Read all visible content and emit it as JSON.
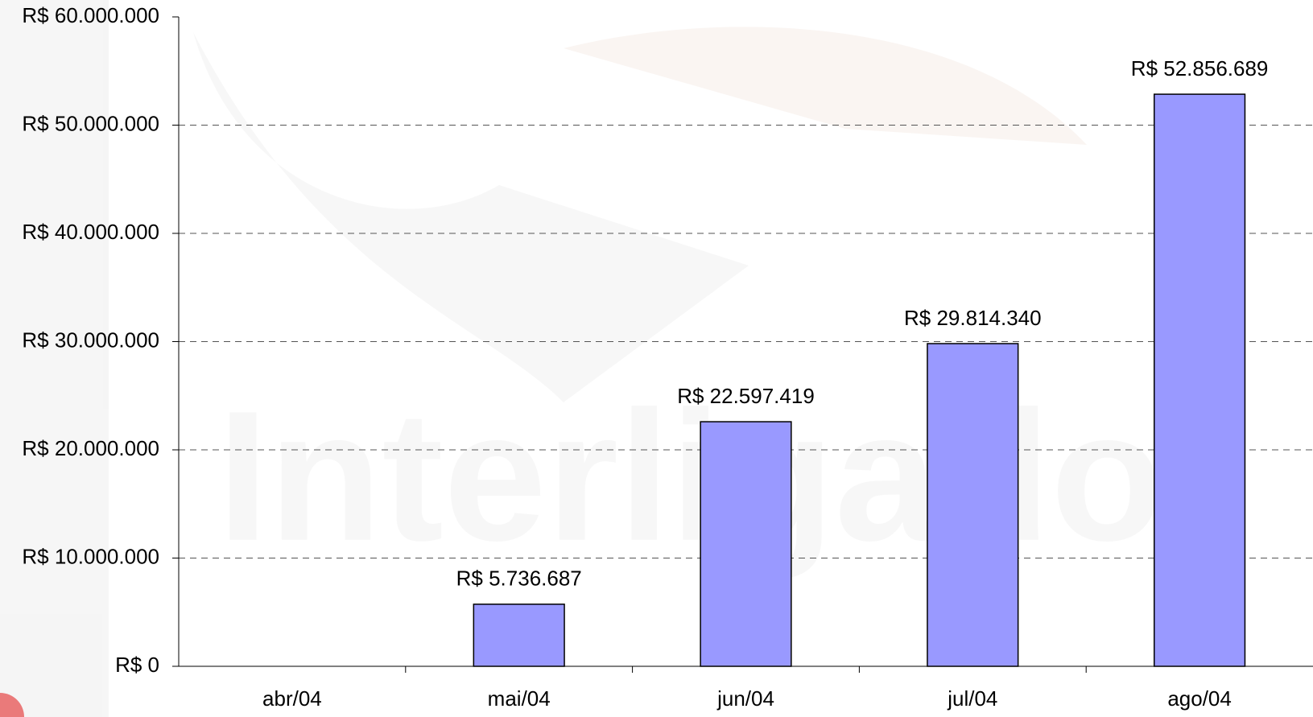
{
  "chart_data": {
    "type": "bar",
    "watermark": "Interligado",
    "categories": [
      "abr/04",
      "mai/04",
      "jun/04",
      "jul/04",
      "ago/04"
    ],
    "values": [
      null,
      5736687,
      22597419,
      29814340,
      52856689
    ],
    "value_labels": [
      null,
      "R$ 5.736.687",
      "R$ 22.597.419",
      "R$ 29.814.340",
      "R$ 52.856.689"
    ],
    "color": "#9999ff",
    "ylim": [
      0,
      60000000
    ],
    "yticks": [
      {
        "value": 0,
        "label": "R$ 0"
      },
      {
        "value": 10000000,
        "label": "R$ 10.000.000"
      },
      {
        "value": 20000000,
        "label": "R$ 20.000.000"
      },
      {
        "value": 30000000,
        "label": "R$ 30.000.000"
      },
      {
        "value": 40000000,
        "label": "R$ 40.000.000"
      },
      {
        "value": 50000000,
        "label": "R$ 50.000.000"
      },
      {
        "value": 60000000,
        "label": "R$ 60.000.000"
      }
    ],
    "grid": true
  }
}
